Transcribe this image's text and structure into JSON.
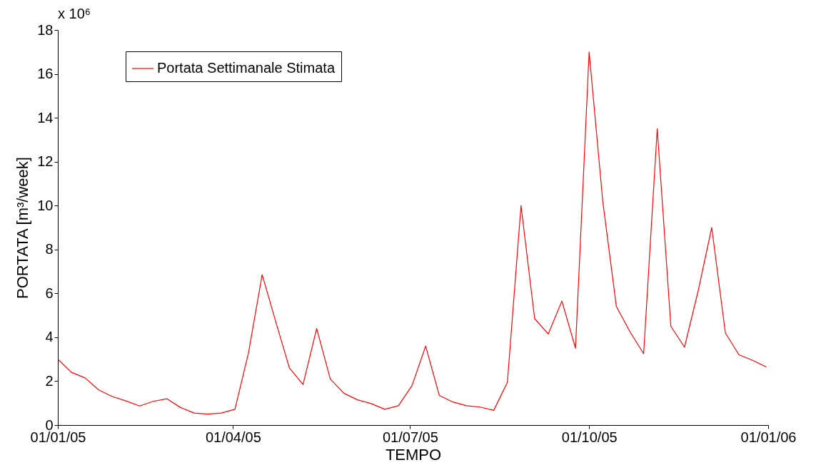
{
  "chart_data": {
    "type": "line",
    "xlabel": "TEMPO",
    "ylabel": "PORTATA [m³/week]",
    "annotations": [
      "x 10⁶"
    ],
    "x": [
      "2005-01-01",
      "2005-01-08",
      "2005-01-15",
      "2005-01-22",
      "2005-01-29",
      "2005-02-05",
      "2005-02-12",
      "2005-02-19",
      "2005-02-26",
      "2005-03-05",
      "2005-03-12",
      "2005-03-19",
      "2005-03-26",
      "2005-04-02",
      "2005-04-09",
      "2005-04-16",
      "2005-04-23",
      "2005-04-30",
      "2005-05-07",
      "2005-05-14",
      "2005-05-21",
      "2005-05-28",
      "2005-06-04",
      "2005-06-11",
      "2005-06-18",
      "2005-06-25",
      "2005-07-02",
      "2005-07-09",
      "2005-07-16",
      "2005-07-23",
      "2005-07-30",
      "2005-08-06",
      "2005-08-13",
      "2005-08-20",
      "2005-08-27",
      "2005-09-03",
      "2005-09-10",
      "2005-09-17",
      "2005-09-24",
      "2005-10-01",
      "2005-10-08",
      "2005-10-15",
      "2005-10-22",
      "2005-10-29",
      "2005-11-05",
      "2005-11-12",
      "2005-11-19",
      "2005-11-26",
      "2005-12-03",
      "2005-12-10",
      "2005-12-17",
      "2005-12-24",
      "2005-12-31"
    ],
    "series": [
      {
        "name": "Portata Settimanale Stimata",
        "color": "#ff0000",
        "values": [
          3.0,
          2.4,
          2.15,
          1.6,
          1.3,
          1.1,
          0.87,
          1.08,
          1.2,
          0.8,
          0.55,
          0.5,
          0.55,
          0.72,
          3.3,
          6.85,
          4.7,
          2.6,
          1.85,
          4.4,
          2.1,
          1.45,
          1.15,
          0.98,
          0.72,
          0.88,
          1.8,
          3.6,
          1.35,
          1.05,
          0.88,
          0.82,
          0.67,
          1.95,
          10.0,
          4.85,
          4.15,
          5.65,
          3.5,
          17.0,
          10.2,
          5.4,
          4.25,
          3.25,
          13.5,
          4.5,
          3.55,
          6.1,
          9.0,
          4.2,
          3.2,
          2.95,
          2.65
        ]
      }
    ],
    "xlim": [
      "2005-01-01",
      "2006-01-01"
    ],
    "xticks": [
      {
        "value": "2005-01-01",
        "label": "01/01/05"
      },
      {
        "value": "2005-04-01",
        "label": "01/04/05"
      },
      {
        "value": "2005-07-01",
        "label": "01/07/05"
      },
      {
        "value": "2005-10-01",
        "label": "01/10/05"
      },
      {
        "value": "2006-01-01",
        "label": "01/01/06"
      }
    ],
    "ylim": [
      0,
      18
    ],
    "yticks": [
      0,
      2,
      4,
      6,
      8,
      10,
      12,
      14,
      16,
      18
    ],
    "legend": "top left",
    "grid": false,
    "line_style": "solid",
    "marker": "none"
  }
}
